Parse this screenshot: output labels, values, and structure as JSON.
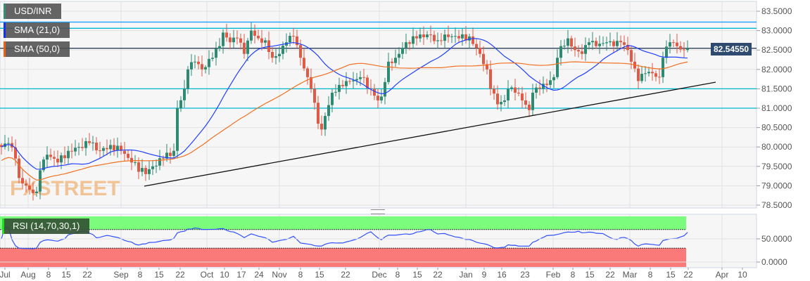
{
  "symbol": "USD/INR",
  "indicators": {
    "sma21": "SMA (21,0)",
    "sma50": "SMA (50,0)",
    "rsi": "RSI (14,70,30,1)"
  },
  "current_price": "82.54550",
  "watermark": "FXSTREET",
  "colors": {
    "up": "#2e8b72",
    "down": "#e05a45",
    "sma21": "#2040ff",
    "sma50": "#f07020",
    "level": "#00b7d4",
    "level_top": "#1ea0ff",
    "price_line": "#2e3f5a",
    "trend": "#111111",
    "rsi": "#3050ff",
    "ob": "#7cfc7c",
    "os": "#fa7a7a"
  },
  "chart_data": {
    "type": "candlestick",
    "title": "USD/INR",
    "x_unit": "trading day index",
    "ylim": [
      78.5,
      83.5
    ],
    "yticks": [
      "83.5000",
      "83.0000",
      "82.5000",
      "82.0000",
      "81.5000",
      "81.0000",
      "80.5000",
      "80.0000",
      "79.5000",
      "79.0000",
      "78.5000"
    ],
    "rsi_yticks": [
      "50.0000",
      "0.0000"
    ],
    "rsi_levels": [
      70,
      30
    ],
    "xticks": [
      [
        "Jul",
        1
      ],
      [
        "Aug",
        7.6
      ],
      [
        "8",
        13.4
      ],
      [
        "15",
        18.4
      ],
      [
        "22",
        24.4
      ],
      [
        "Sep",
        34
      ],
      [
        "8",
        39.4
      ],
      [
        "15",
        44.8
      ],
      [
        "22",
        50.8
      ],
      [
        "Oct",
        58.4
      ],
      [
        "10",
        63.4
      ],
      [
        "17",
        68.2
      ],
      [
        "24",
        73.2
      ],
      [
        "Nov",
        79
      ],
      [
        "8",
        85
      ],
      [
        "15",
        90.4
      ],
      [
        "22",
        97.8
      ],
      [
        "Dec",
        107.4
      ],
      [
        "8",
        112.6
      ],
      [
        "15",
        118.2
      ],
      [
        "22",
        124
      ],
      [
        "Jan",
        132
      ],
      [
        "9",
        137.2
      ],
      [
        "16",
        142.2
      ],
      [
        "23",
        148.8
      ],
      [
        "Feb",
        156.8
      ],
      [
        "8",
        162.4
      ],
      [
        "15",
        167.2
      ],
      [
        "22",
        173
      ],
      [
        "Mar",
        178.6
      ],
      [
        "8",
        184.4
      ],
      [
        "15",
        190.2
      ],
      [
        "22",
        195.2
      ],
      [
        "Apr",
        204.8
      ],
      [
        "10",
        210.6
      ]
    ],
    "close_keypoints": [
      [
        0,
        80.0
      ],
      [
        2,
        80.1
      ],
      [
        4,
        79.7
      ],
      [
        5,
        79.2
      ],
      [
        8,
        78.9
      ],
      [
        10,
        78.85
      ],
      [
        11,
        79.4
      ],
      [
        13,
        79.8
      ],
      [
        16,
        79.6
      ],
      [
        19,
        79.9
      ],
      [
        22,
        80.0
      ],
      [
        25,
        80.1
      ],
      [
        28,
        79.9
      ],
      [
        31,
        80.05
      ],
      [
        34,
        79.9
      ],
      [
        37,
        79.6
      ],
      [
        41,
        79.3
      ],
      [
        43,
        79.5
      ],
      [
        46,
        79.7
      ],
      [
        49,
        79.9
      ],
      [
        50,
        81.0
      ],
      [
        52,
        81.5
      ],
      [
        53,
        82.0
      ],
      [
        55,
        82.2
      ],
      [
        57,
        82.0
      ],
      [
        60,
        82.3
      ],
      [
        62,
        82.6
      ],
      [
        63,
        82.95
      ],
      [
        65,
        82.7
      ],
      [
        67,
        82.8
      ],
      [
        69,
        82.4
      ],
      [
        71,
        83.0
      ],
      [
        73,
        82.8
      ],
      [
        75,
        82.75
      ],
      [
        77,
        82.3
      ],
      [
        79,
        82.4
      ],
      [
        81,
        82.7
      ],
      [
        83,
        82.85
      ],
      [
        85,
        82.3
      ],
      [
        87,
        81.8
      ],
      [
        88,
        81.5
      ],
      [
        90,
        80.6
      ],
      [
        91,
        80.45
      ],
      [
        92,
        80.8
      ],
      [
        94,
        81.4
      ],
      [
        96,
        81.6
      ],
      [
        98,
        81.7
      ],
      [
        101,
        81.75
      ],
      [
        102,
        81.8
      ],
      [
        105,
        81.5
      ],
      [
        107,
        81.2
      ],
      [
        108,
        81.3
      ],
      [
        110,
        82.2
      ],
      [
        112,
        82.3
      ],
      [
        115,
        82.7
      ],
      [
        118,
        82.8
      ],
      [
        121,
        82.9
      ],
      [
        124,
        82.75
      ],
      [
        126,
        82.9
      ],
      [
        130,
        82.8
      ],
      [
        133,
        82.85
      ],
      [
        136,
        82.4
      ],
      [
        138,
        82.0
      ],
      [
        139,
        81.5
      ],
      [
        141,
        81.1
      ],
      [
        143,
        81.2
      ],
      [
        144,
        81.5
      ],
      [
        146,
        81.4
      ],
      [
        148,
        81.2
      ],
      [
        150,
        80.95
      ],
      [
        151,
        81.4
      ],
      [
        153,
        81.5
      ],
      [
        155,
        81.6
      ],
      [
        157,
        81.8
      ],
      [
        158,
        82.3
      ],
      [
        159,
        82.6
      ],
      [
        161,
        82.8
      ],
      [
        163,
        82.5
      ],
      [
        165,
        82.4
      ],
      [
        167,
        82.7
      ],
      [
        169,
        82.6
      ],
      [
        172,
        82.7
      ],
      [
        174,
        82.6
      ],
      [
        176,
        82.7
      ],
      [
        178,
        82.5
      ],
      [
        179,
        82.2
      ],
      [
        181,
        81.7
      ],
      [
        183,
        81.9
      ],
      [
        185,
        81.9
      ],
      [
        187,
        81.8
      ],
      [
        188,
        82.3
      ],
      [
        190,
        82.7
      ],
      [
        192,
        82.6
      ],
      [
        194,
        82.5
      ],
      [
        195,
        82.55
      ]
    ],
    "horizontal_levels": [
      83.22,
      83.06,
      81.5,
      81.0
    ],
    "trendline": [
      [
        40.6,
        78.99
      ],
      [
        203,
        81.67
      ]
    ],
    "last_price": 82.5455
  }
}
